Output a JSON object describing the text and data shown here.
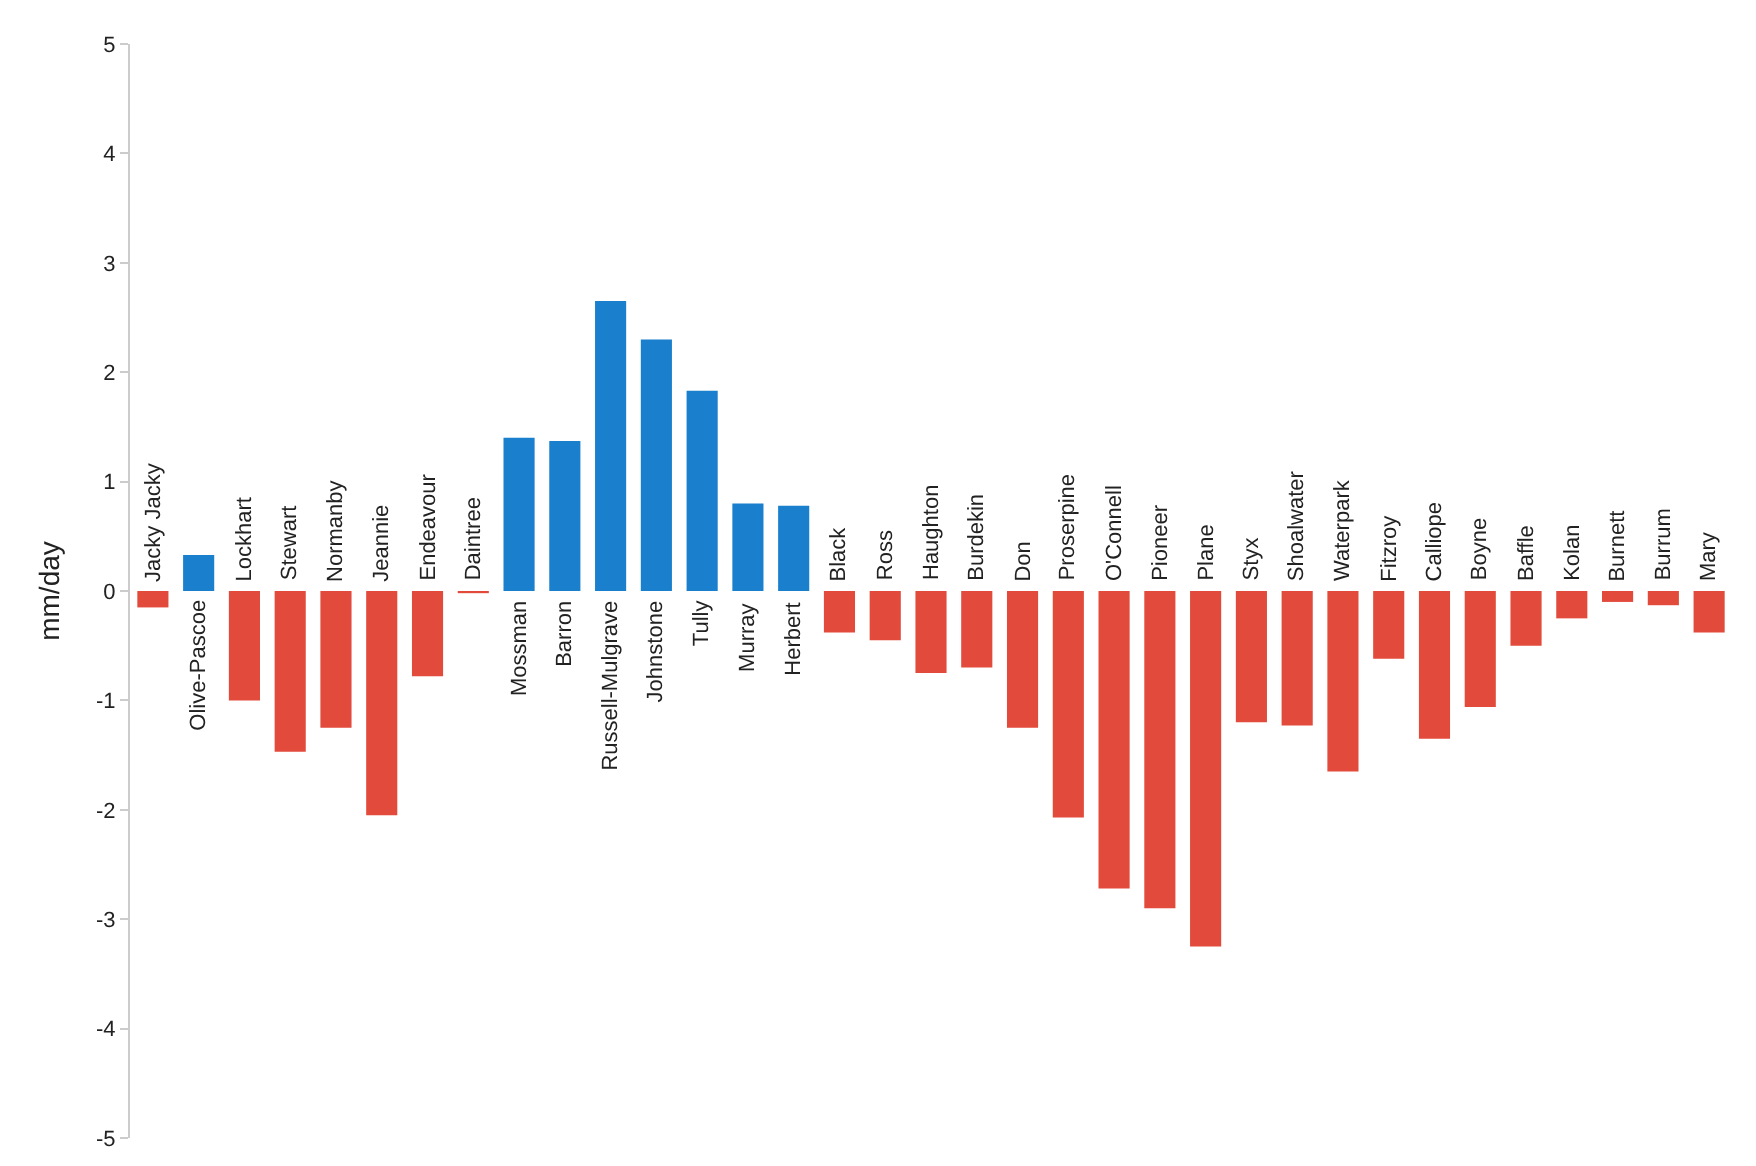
{
  "chart_data": {
    "type": "bar",
    "ylabel": "mm/day",
    "categories": [
      "Jacky Jacky",
      "Olive-Pascoe",
      "Lockhart",
      "Stewart",
      "Normanby",
      "Jeannie",
      "Endeavour",
      "Daintree",
      "Mossman",
      "Barron",
      "Russell-Mulgrave",
      "Johnstone",
      "Tully",
      "Murray",
      "Herbert",
      "Black",
      "Ross",
      "Haughton",
      "Burdekin",
      "Don",
      "Proserpine",
      "O'Connell",
      "Pioneer",
      "Plane",
      "Styx",
      "Shoalwater",
      "Waterpark",
      "Fitzroy",
      "Calliope",
      "Boyne",
      "Baffle",
      "Kolan",
      "Burnett",
      "Burrum",
      "Mary"
    ],
    "values": [
      -0.15,
      0.33,
      -1.0,
      -1.47,
      -1.25,
      -2.05,
      -0.78,
      -0.02,
      1.4,
      1.37,
      2.65,
      2.3,
      1.83,
      0.8,
      0.78,
      -0.38,
      -0.45,
      -0.75,
      -0.7,
      -1.25,
      -2.07,
      -2.72,
      -2.9,
      -3.25,
      -1.2,
      -1.23,
      -1.65,
      -0.62,
      -1.35,
      -1.06,
      -0.5,
      -0.25,
      -0.1,
      -0.13,
      -0.38
    ],
    "colors": [
      "#e24a3b",
      "#1a7fcc",
      "#e24a3b",
      "#e24a3b",
      "#e24a3b",
      "#e24a3b",
      "#e24a3b",
      "#e24a3b",
      "#1a7fcc",
      "#1a7fcc",
      "#1a7fcc",
      "#1a7fcc",
      "#1a7fcc",
      "#1a7fcc",
      "#1a7fcc",
      "#e24a3b",
      "#e24a3b",
      "#e24a3b",
      "#e24a3b",
      "#e24a3b",
      "#e24a3b",
      "#e24a3b",
      "#e24a3b",
      "#e24a3b",
      "#e24a3b",
      "#e24a3b",
      "#e24a3b",
      "#e24a3b",
      "#e24a3b",
      "#e24a3b",
      "#e24a3b",
      "#e24a3b",
      "#e24a3b",
      "#e24a3b",
      "#e24a3b"
    ],
    "ylim": [
      -5,
      5
    ],
    "yticks": [
      -5,
      -4,
      -3,
      -2,
      -1,
      0,
      1,
      2,
      3,
      4,
      5
    ],
    "grid": false
  }
}
